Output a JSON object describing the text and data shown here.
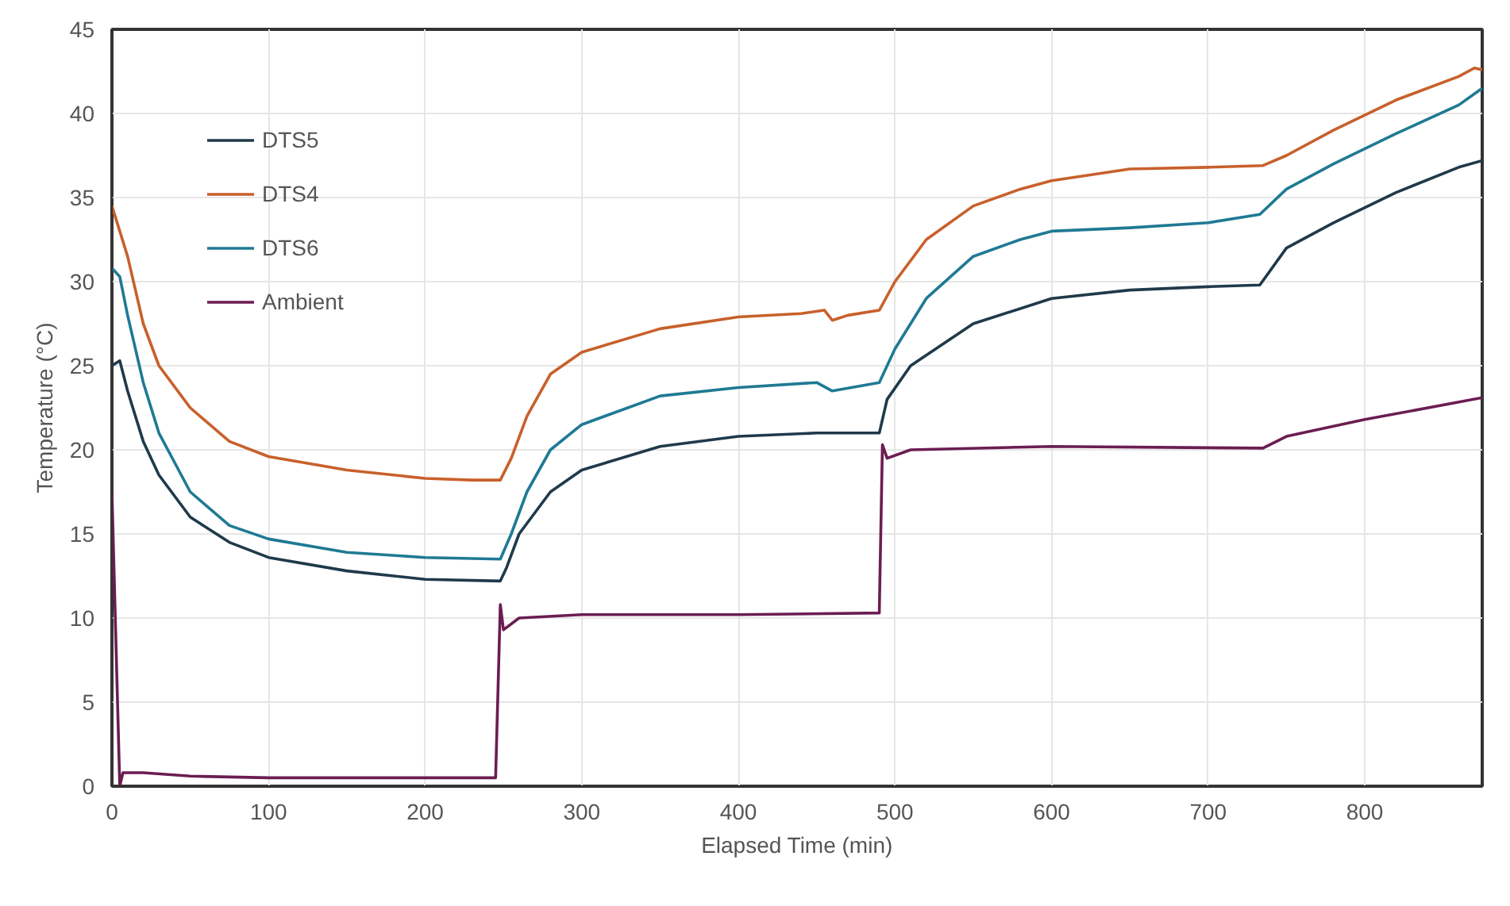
{
  "chart_data": {
    "type": "line",
    "xlabel": "Elapsed Time (min)",
    "ylabel": "Temperature (°C)",
    "xlim": [
      0,
      875
    ],
    "ylim": [
      0,
      45
    ],
    "xticks": [
      0,
      100,
      200,
      300,
      400,
      500,
      600,
      700,
      800
    ],
    "yticks": [
      0,
      5,
      10,
      15,
      20,
      25,
      30,
      35,
      40,
      45
    ],
    "grid": true,
    "legend": "top left",
    "marker": "none",
    "line_style": "solid",
    "series": [
      {
        "name": "DTS5",
        "color": "#1f3a4a",
        "x": [
          0,
          5,
          10,
          20,
          30,
          50,
          75,
          100,
          150,
          200,
          248,
          252,
          260,
          280,
          300,
          350,
          400,
          450,
          490,
          495,
          510,
          550,
          600,
          650,
          700,
          733,
          750,
          780,
          820,
          860,
          875
        ],
        "values": [
          25,
          25.3,
          23.5,
          20.5,
          18.5,
          16,
          14.5,
          13.6,
          12.8,
          12.3,
          12.2,
          13,
          15,
          17.5,
          18.8,
          20.2,
          20.8,
          21,
          21,
          23,
          25,
          27.5,
          29,
          29.5,
          29.7,
          29.8,
          32,
          33.5,
          35.3,
          36.8,
          37.2
        ]
      },
      {
        "name": "DTS4",
        "color": "#c8602b",
        "x": [
          0,
          5,
          10,
          20,
          30,
          50,
          75,
          100,
          150,
          200,
          230,
          248,
          255,
          265,
          280,
          300,
          350,
          400,
          440,
          455,
          460,
          470,
          490,
          500,
          520,
          550,
          580,
          600,
          650,
          700,
          735,
          750,
          780,
          820,
          860,
          870,
          875
        ],
        "values": [
          34.5,
          33,
          31.5,
          27.5,
          25,
          22.5,
          20.5,
          19.6,
          18.8,
          18.3,
          18.2,
          18.2,
          19.5,
          22,
          24.5,
          25.8,
          27.2,
          27.9,
          28.1,
          28.3,
          27.7,
          28,
          28.3,
          30,
          32.5,
          34.5,
          35.5,
          36,
          36.7,
          36.8,
          36.9,
          37.5,
          39,
          40.8,
          42.2,
          42.7,
          42.6
        ]
      },
      {
        "name": "DTS6",
        "color": "#1f7a93",
        "x": [
          0,
          5,
          10,
          20,
          30,
          50,
          75,
          100,
          150,
          200,
          248,
          255,
          265,
          280,
          300,
          350,
          400,
          450,
          460,
          490,
          500,
          520,
          550,
          580,
          600,
          650,
          700,
          733,
          750,
          780,
          820,
          860,
          875
        ],
        "values": [
          30.8,
          30.3,
          28,
          24,
          21,
          17.5,
          15.5,
          14.7,
          13.9,
          13.6,
          13.5,
          15,
          17.5,
          20,
          21.5,
          23.2,
          23.7,
          24,
          23.5,
          24,
          26,
          29,
          31.5,
          32.5,
          33,
          33.2,
          33.5,
          34,
          35.5,
          37,
          38.8,
          40.5,
          41.5
        ]
      },
      {
        "name": "Ambient",
        "color": "#6b1d52",
        "x": [
          0,
          5,
          7,
          20,
          50,
          100,
          200,
          245,
          248,
          250,
          260,
          300,
          400,
          490,
          492,
          495,
          510,
          600,
          735,
          750,
          800,
          875
        ],
        "values": [
          17.5,
          0,
          0.8,
          0.8,
          0.6,
          0.5,
          0.5,
          0.5,
          10.8,
          9.3,
          10,
          10.2,
          10.2,
          10.3,
          20.3,
          19.5,
          20,
          20.2,
          20.1,
          20.8,
          21.8,
          23.1
        ]
      }
    ]
  }
}
